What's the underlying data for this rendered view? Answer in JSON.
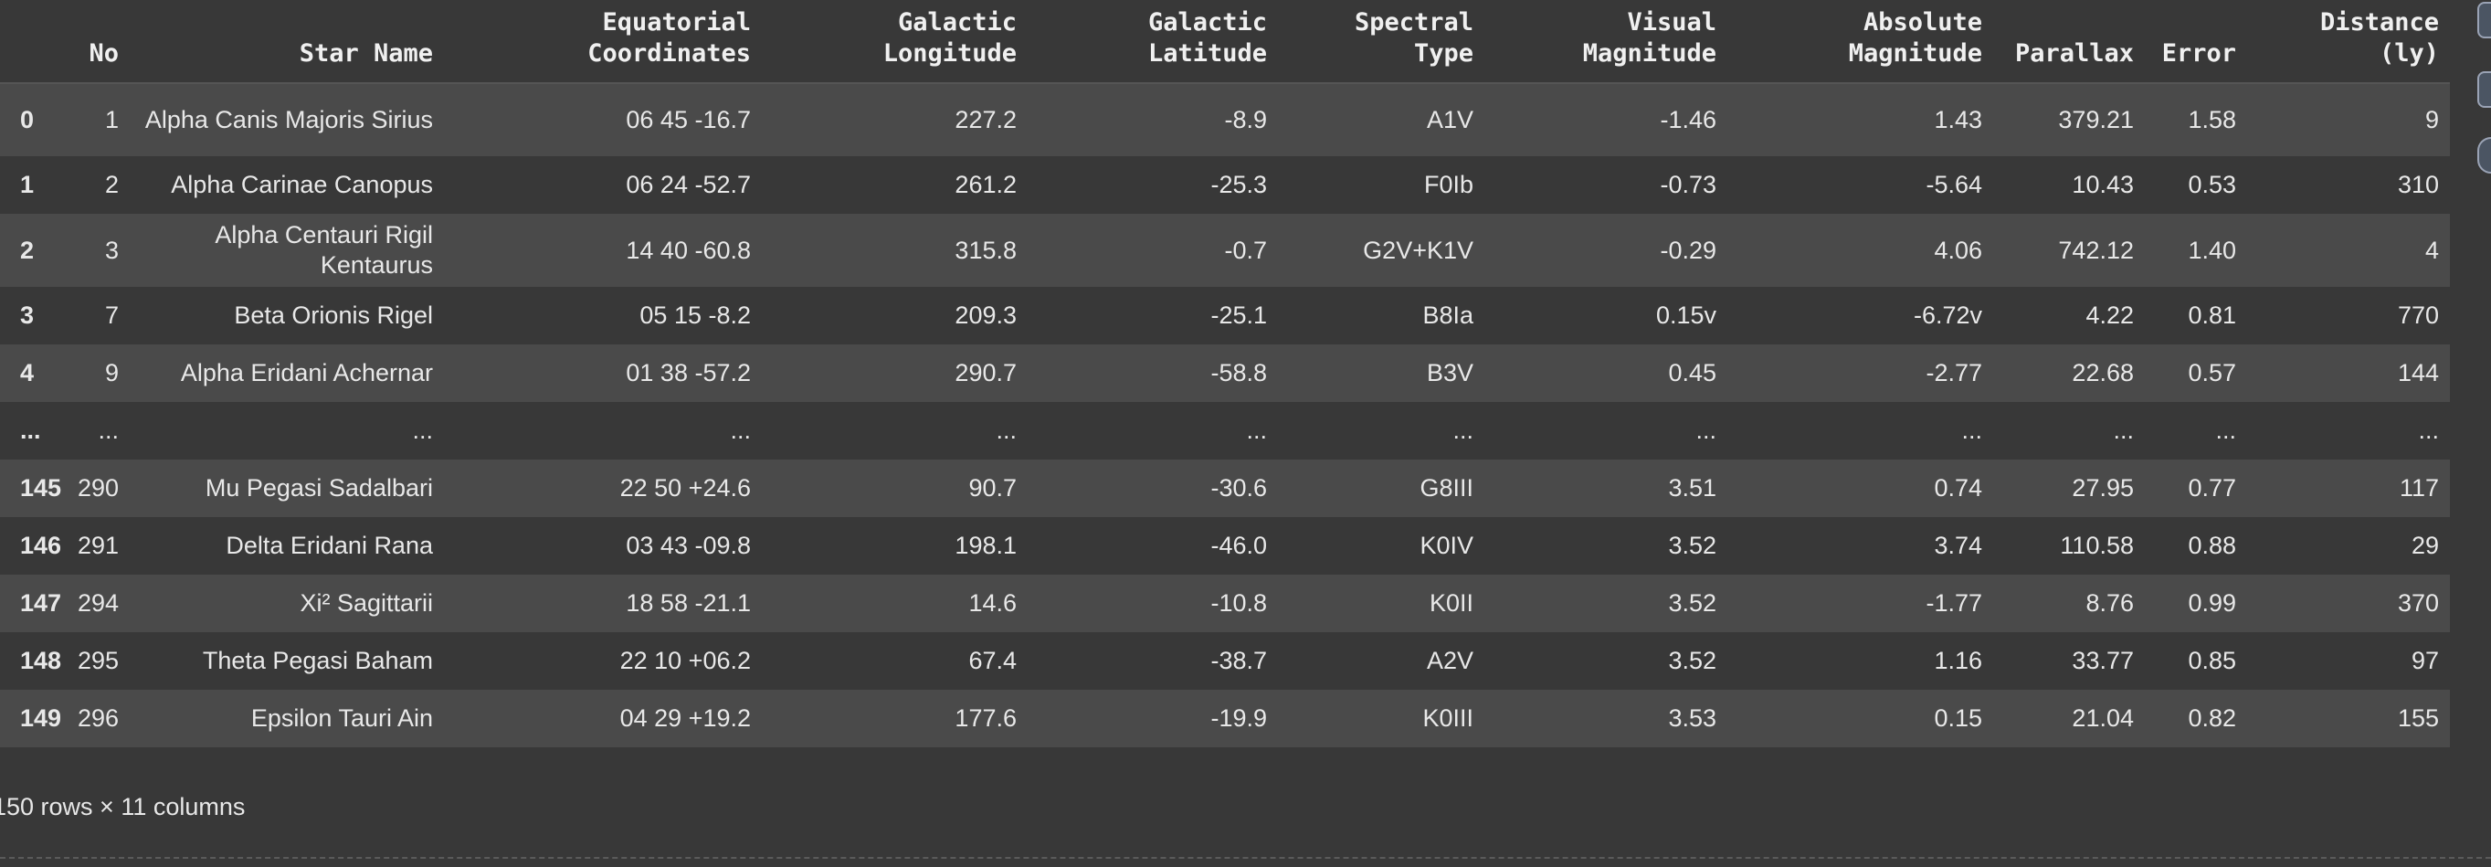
{
  "table": {
    "columns": [
      "",
      "No",
      "Star Name",
      "Equatorial\nCoordinates",
      "Galactic\nLongitude",
      "Galactic\nLatitude",
      "Spectral\nType",
      "Visual\nMagnitude",
      "Absolute\nMagnitude",
      "Parallax",
      "Error",
      "Distance\n(ly)"
    ],
    "rows": [
      {
        "index": "0",
        "cells": [
          "1",
          "Alpha Canis Majoris Sirius",
          "06 45 -16.7",
          "227.2",
          "-8.9",
          "A1V",
          "-1.46",
          "1.43",
          "379.21",
          "1.58",
          "9"
        ]
      },
      {
        "index": "1",
        "cells": [
          "2",
          "Alpha Carinae Canopus",
          "06 24 -52.7",
          "261.2",
          "-25.3",
          "F0Ib",
          "-0.73",
          "-5.64",
          "10.43",
          "0.53",
          "310"
        ]
      },
      {
        "index": "2",
        "cells": [
          "3",
          "Alpha Centauri Rigil Kentaurus",
          "14 40 -60.8",
          "315.8",
          "-0.7",
          "G2V+K1V",
          "-0.29",
          "4.06",
          "742.12",
          "1.40",
          "4"
        ]
      },
      {
        "index": "3",
        "cells": [
          "7",
          "Beta Orionis Rigel",
          "05 15 -8.2",
          "209.3",
          "-25.1",
          "B8Ia",
          "0.15v",
          "-6.72v",
          "4.22",
          "0.81",
          "770"
        ]
      },
      {
        "index": "4",
        "cells": [
          "9",
          "Alpha Eridani Achernar",
          "01 38 -57.2",
          "290.7",
          "-58.8",
          "B3V",
          "0.45",
          "-2.77",
          "22.68",
          "0.57",
          "144"
        ]
      },
      {
        "index": "...",
        "cells": [
          "...",
          "...",
          "...",
          "...",
          "...",
          "...",
          "...",
          "...",
          "...",
          "...",
          "..."
        ]
      },
      {
        "index": "145",
        "cells": [
          "290",
          "Mu Pegasi Sadalbari",
          "22 50 +24.6",
          "90.7",
          "-30.6",
          "G8III",
          "3.51",
          "0.74",
          "27.95",
          "0.77",
          "117"
        ]
      },
      {
        "index": "146",
        "cells": [
          "291",
          "Delta Eridani Rana",
          "03 43 -09.8",
          "198.1",
          "-46.0",
          "K0IV",
          "3.52",
          "3.74",
          "110.58",
          "0.88",
          "29"
        ]
      },
      {
        "index": "147",
        "cells": [
          "294",
          "Xi² Sagittarii",
          "18 58 -21.1",
          "14.6",
          "-10.8",
          "K0II",
          "3.52",
          "-1.77",
          "8.76",
          "0.99",
          "370"
        ]
      },
      {
        "index": "148",
        "cells": [
          "295",
          "Theta Pegasi Baham",
          "22 10 +06.2",
          "67.4",
          "-38.7",
          "A2V",
          "3.52",
          "1.16",
          "33.77",
          "0.85",
          "97"
        ]
      },
      {
        "index": "149",
        "cells": [
          "296",
          "Epsilon Tauri Ain",
          "04 29 +19.2",
          "177.6",
          "-19.9",
          "K0III",
          "3.53",
          "0.15",
          "21.04",
          "0.82",
          "155"
        ]
      }
    ]
  },
  "footer": {
    "summary": "150 rows × 11 columns"
  },
  "colors": {
    "background": "#383838",
    "row_stripe": "#4a4a4a",
    "text": "#e8e8e8"
  }
}
